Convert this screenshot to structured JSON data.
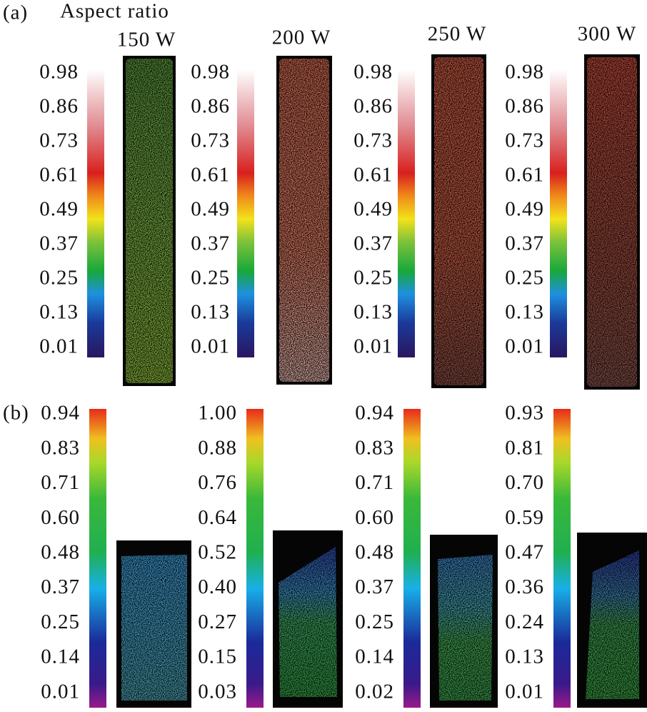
{
  "panel_a": {
    "label": "(a)",
    "title": "Aspect ratio",
    "samples": [
      {
        "power": "150 W",
        "scale": [
          "0.98",
          "0.86",
          "0.73",
          "0.61",
          "0.49",
          "0.37",
          "0.25",
          "0.13",
          "0.01"
        ]
      },
      {
        "power": "200 W",
        "scale": [
          "0.98",
          "0.86",
          "0.73",
          "0.61",
          "0.49",
          "0.37",
          "0.25",
          "0.13",
          "0.01"
        ]
      },
      {
        "power": "250 W",
        "scale": [
          "0.98",
          "0.86",
          "0.73",
          "0.61",
          "0.49",
          "0.37",
          "0.25",
          "0.13",
          "0.01"
        ]
      },
      {
        "power": "300 W",
        "scale": [
          "0.98",
          "0.86",
          "0.73",
          "0.61",
          "0.49",
          "0.37",
          "0.25",
          "0.13",
          "0.01"
        ]
      }
    ]
  },
  "panel_b": {
    "label": "(b)",
    "samples": [
      {
        "scale": [
          "0.94",
          "0.83",
          "0.71",
          "0.60",
          "0.48",
          "0.37",
          "0.25",
          "0.14",
          "0.01"
        ]
      },
      {
        "scale": [
          "1.00",
          "0.88",
          "0.76",
          "0.64",
          "0.52",
          "0.40",
          "0.27",
          "0.15",
          "0.03"
        ]
      },
      {
        "scale": [
          "0.94",
          "0.83",
          "0.71",
          "0.60",
          "0.48",
          "0.37",
          "0.25",
          "0.14",
          "0.02"
        ]
      },
      {
        "scale": [
          "0.93",
          "0.81",
          "0.70",
          "0.59",
          "0.47",
          "0.36",
          "0.24",
          "0.13",
          "0.01"
        ]
      }
    ]
  }
}
